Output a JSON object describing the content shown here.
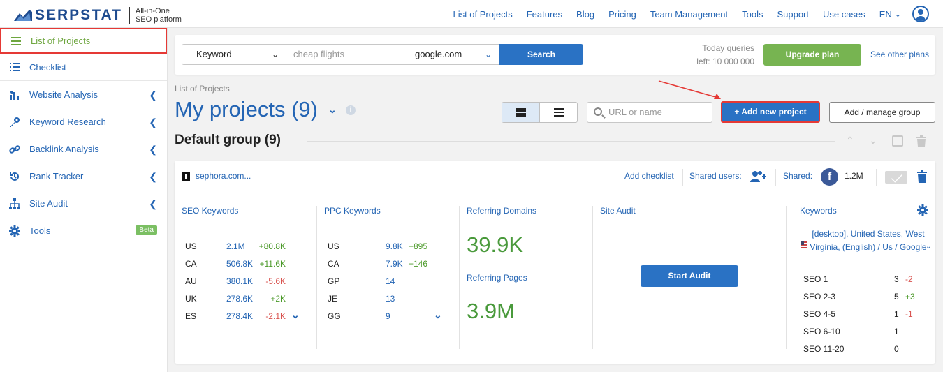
{
  "header": {
    "logo": "SERPSTAT",
    "tagline_1": "All-in-One",
    "tagline_2": "SEO platform",
    "nav": [
      "List of Projects",
      "Features",
      "Blog",
      "Pricing",
      "Team Management",
      "Tools",
      "Support",
      "Use cases"
    ],
    "language": "EN"
  },
  "sidebar": {
    "items": [
      {
        "label": "List of Projects",
        "icon": "hamburger-icon"
      },
      {
        "label": "Checklist",
        "icon": "list-icon"
      },
      {
        "label": "Website Analysis",
        "icon": "chart-icon"
      },
      {
        "label": "Keyword Research",
        "icon": "key-icon"
      },
      {
        "label": "Backlink Analysis",
        "icon": "link-icon"
      },
      {
        "label": "Rank Tracker",
        "icon": "history-icon"
      },
      {
        "label": "Site Audit",
        "icon": "sitemap-icon"
      },
      {
        "label": "Tools",
        "icon": "gear-icon"
      }
    ],
    "beta_badge": "Beta"
  },
  "search": {
    "type_selected": "Keyword",
    "query_placeholder": "cheap flights",
    "engine_selected": "google.com",
    "search_button": "Search",
    "queries_label": "Today queries",
    "queries_left": "left: 10 000 000",
    "upgrade_button": "Upgrade plan",
    "see_plans": "See other plans"
  },
  "projects": {
    "breadcrumb": "List of Projects",
    "title": "My projects (9)",
    "url_search_placeholder": "URL or name",
    "add_button": "+ Add new project",
    "manage_button": "Add / manage group",
    "group_title": "Default group (9)"
  },
  "card": {
    "domain": "sephora.com...",
    "add_checklist": "Add checklist",
    "shared_users": "Shared users:",
    "shared": "Shared:",
    "fb_letter": "f",
    "fb_count": "1.2M",
    "seo": {
      "title": "SEO Keywords",
      "rows": [
        {
          "country": "US",
          "value": "2.1M",
          "delta": "+80.8K"
        },
        {
          "country": "CA",
          "value": "506.8K",
          "delta": "+11.6K"
        },
        {
          "country": "AU",
          "value": "380.1K",
          "delta": "-5.6K"
        },
        {
          "country": "UK",
          "value": "278.6K",
          "delta": "+2K"
        },
        {
          "country": "ES",
          "value": "278.4K",
          "delta": "-2.1K"
        }
      ]
    },
    "ppc": {
      "title": "PPC Keywords",
      "rows": [
        {
          "country": "US",
          "value": "9.8K",
          "delta": "+895"
        },
        {
          "country": "CA",
          "value": "7.9K",
          "delta": "+146"
        },
        {
          "country": "GP",
          "value": "14",
          "delta": ""
        },
        {
          "country": "JE",
          "value": "13",
          "delta": ""
        },
        {
          "country": "GG",
          "value": "9",
          "delta": ""
        }
      ]
    },
    "referring": {
      "domains_title": "Referring Domains",
      "domains_value": "39.9K",
      "pages_title": "Referring Pages",
      "pages_value": "3.9M"
    },
    "audit": {
      "title": "Site Audit",
      "button": "Start Audit"
    },
    "keywords": {
      "title": "Keywords",
      "region": "[desktop], United States, West Virginia, (English) / Us / Google",
      "rows": [
        {
          "label": "SEO 1",
          "count": "3",
          "delta": "-2"
        },
        {
          "label": "SEO 2-3",
          "count": "5",
          "delta": "+3"
        },
        {
          "label": "SEO 4-5",
          "count": "1",
          "delta": "-1"
        },
        {
          "label": "SEO 6-10",
          "count": "1",
          "delta": ""
        },
        {
          "label": "SEO 11-20",
          "count": "0",
          "delta": ""
        }
      ]
    }
  },
  "colors": {
    "brand_blue": "#2465b4",
    "button_blue": "#2a72c4",
    "upgrade_green": "#77b451",
    "metric_green": "#4a9a3c",
    "highlight_red": "#e53935"
  }
}
